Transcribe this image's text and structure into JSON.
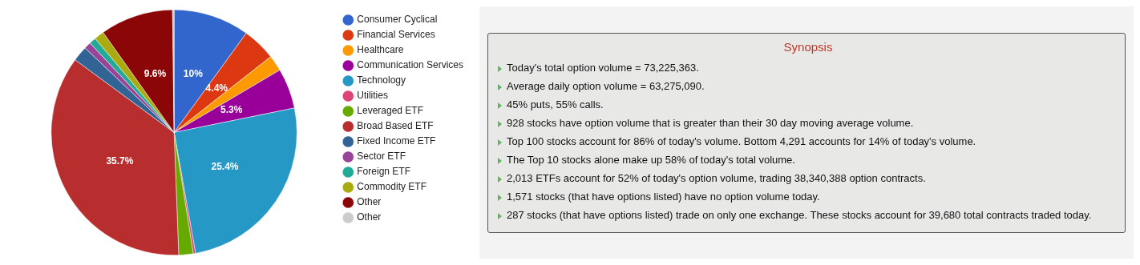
{
  "chart_data": [
    {
      "type": "pie",
      "categories": [
        "Consumer Cyclical",
        "Financial Services",
        "Healthcare",
        "Communication Services",
        "Technology",
        "Utilities",
        "Leveraged ETF",
        "Broad Based ETF",
        "Fixed Income ETF",
        "Sector ETF",
        "Foreign ETF",
        "Commodity ETF",
        "Other",
        "Other"
      ],
      "values": [
        10,
        4.4,
        2.1,
        5.3,
        25.4,
        0.3,
        1.9,
        35.7,
        2.0,
        0.9,
        0.9,
        1.3,
        9.6,
        0.2
      ],
      "colors": [
        "#3366cc",
        "#dc3912",
        "#ff9900",
        "#990099",
        "#2598c6",
        "#dd4477",
        "#66aa00",
        "#b82e2e",
        "#316395",
        "#994499",
        "#22aa99",
        "#aaaa11",
        "#8b0707",
        "#cccccc"
      ],
      "value_labels": [
        "10%",
        "4.4%",
        null,
        "5.3%",
        "25.4%",
        null,
        null,
        "35.7%",
        null,
        null,
        null,
        null,
        "9.6%",
        null
      ],
      "legend": "right"
    },
    {
      "type": "other",
      "title": "Synopsis",
      "annotations": [
        "Today's total option volume = 73,225,363.",
        "Average daily option volume = 63,275,090.",
        "45% puts, 55% calls.",
        "928 stocks have option volume that is greater than their 30 day moving average volume.",
        "Top 100 stocks account for 86% of today's volume. Bottom 4,291 accounts for 14% of today's volume.",
        "The Top 10 stocks alone make up 58% of today's total volume.",
        "2,013 ETFs account for 52% of today's option volume, trading 38,340,388 option contracts.",
        "1,571 stocks (that have options listed) have no option volume today.",
        "287 stocks (that have options listed) trade on only one exchange. These stocks account for 39,680 total contracts traded today."
      ]
    }
  ]
}
